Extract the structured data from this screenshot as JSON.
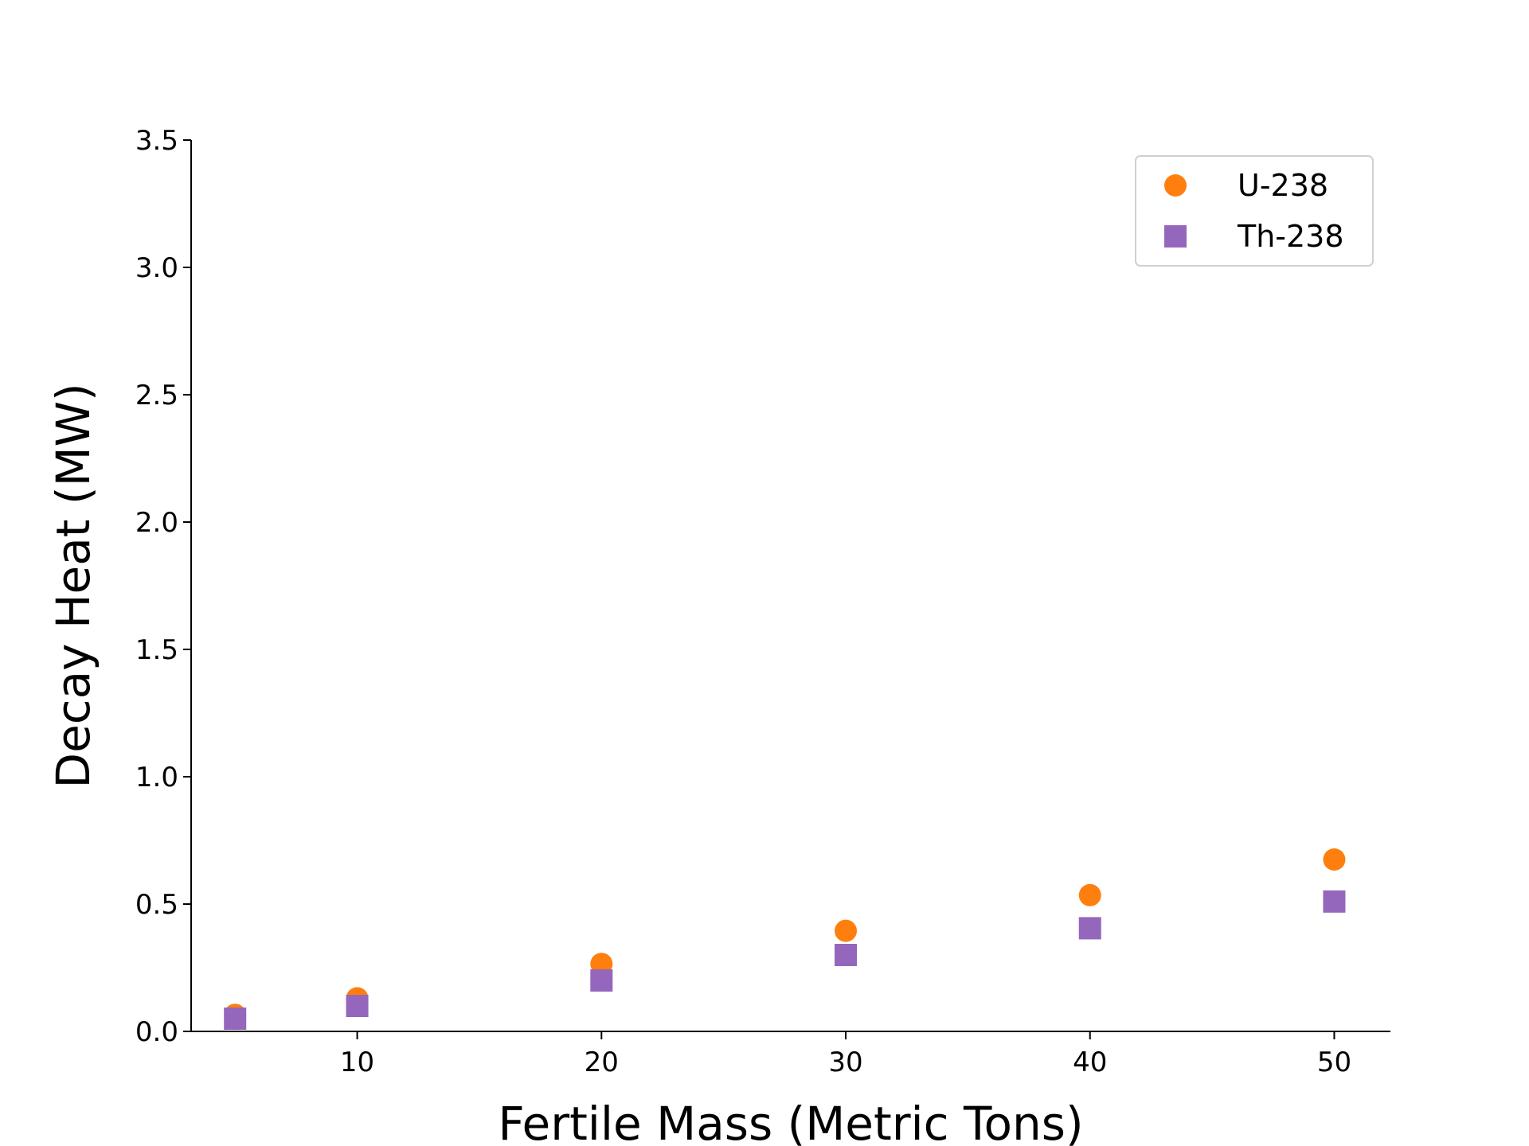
{
  "chart_data": {
    "type": "scatter",
    "title": "",
    "xlabel": "Fertile Mass (Metric Tons)",
    "ylabel": "Decay Heat (MW)",
    "xlim": [
      3.2,
      52.3
    ],
    "ylim": [
      0.0,
      3.5
    ],
    "xticks": [
      10,
      20,
      30,
      40,
      50
    ],
    "yticks": [
      0.0,
      0.5,
      1.0,
      1.5,
      2.0,
      2.5,
      3.0,
      3.5
    ],
    "xtick_labels": [
      "10",
      "20",
      "30",
      "40",
      "50"
    ],
    "ytick_labels": [
      "0.0",
      "0.5",
      "1.0",
      "1.5",
      "2.0",
      "2.5",
      "3.0",
      "3.5"
    ],
    "grid": false,
    "legend_position": "top-right",
    "series": [
      {
        "name": "U-238",
        "marker": "circle",
        "color": "#ff7f0e",
        "x": [
          5,
          10,
          20,
          30,
          40,
          50
        ],
        "y": [
          0.065,
          0.13,
          0.265,
          0.395,
          0.535,
          0.675
        ]
      },
      {
        "name": "Th-238",
        "marker": "square",
        "color": "#9467bd",
        "x": [
          5,
          10,
          20,
          30,
          40,
          50
        ],
        "y": [
          0.05,
          0.1,
          0.2,
          0.3,
          0.405,
          0.51
        ]
      }
    ]
  }
}
